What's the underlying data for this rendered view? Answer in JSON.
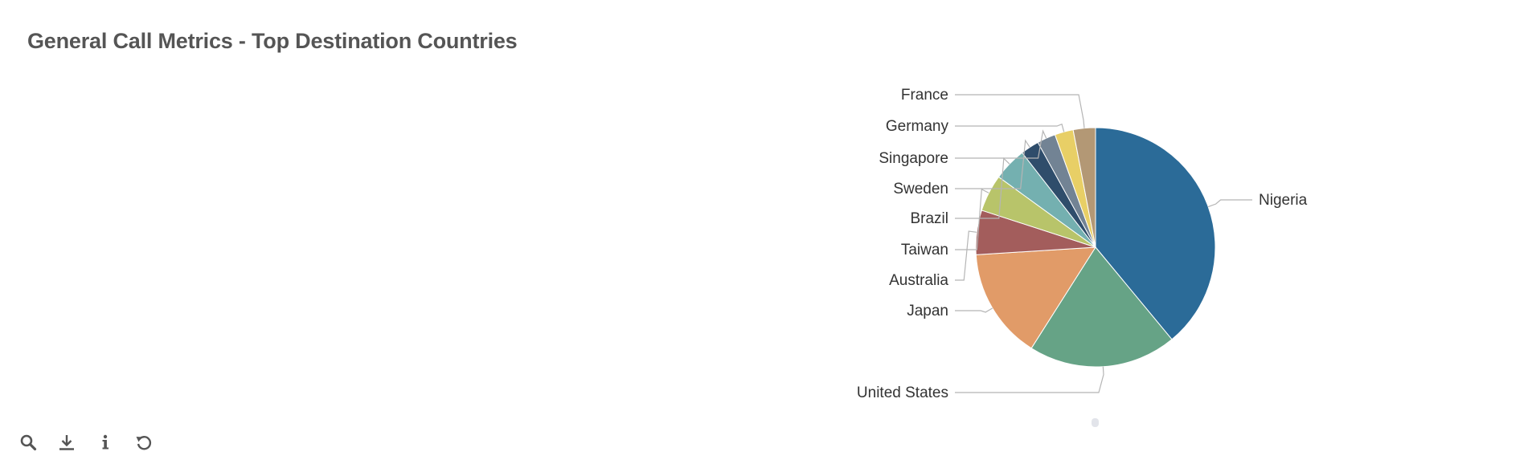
{
  "panel": {
    "title": "General Call Metrics - Top Destination Countries"
  },
  "toolbar": {
    "buttons": [
      {
        "icon": "magnifier-icon"
      },
      {
        "icon": "download-icon"
      },
      {
        "icon": "info-icon"
      },
      {
        "icon": "reset-icon"
      }
    ]
  },
  "chart_data": {
    "type": "pie",
    "title": "",
    "start_angle": "12 o'clock",
    "direction": "clockwise",
    "slices": [
      {
        "label": "Nigeria",
        "value": 39.0,
        "color": "#2b6b98"
      },
      {
        "label": "United States",
        "value": 20.0,
        "color": "#66a386"
      },
      {
        "label": "Japan",
        "value": 15.0,
        "color": "#e19b68"
      },
      {
        "label": "Australia",
        "value": 6.0,
        "color": "#a35d5c"
      },
      {
        "label": "Taiwan",
        "value": 5.0,
        "color": "#b8c46a"
      },
      {
        "label": "Brazil",
        "value": 4.5,
        "color": "#74b0b0"
      },
      {
        "label": "Sweden",
        "value": 2.5,
        "color": "#2f4d6b"
      },
      {
        "label": "Singapore",
        "value": 2.5,
        "color": "#728394"
      },
      {
        "label": "Germany",
        "value": 2.5,
        "color": "#e8cf66"
      },
      {
        "label": "France",
        "value": 3.0,
        "color": "#b39875"
      }
    ]
  }
}
